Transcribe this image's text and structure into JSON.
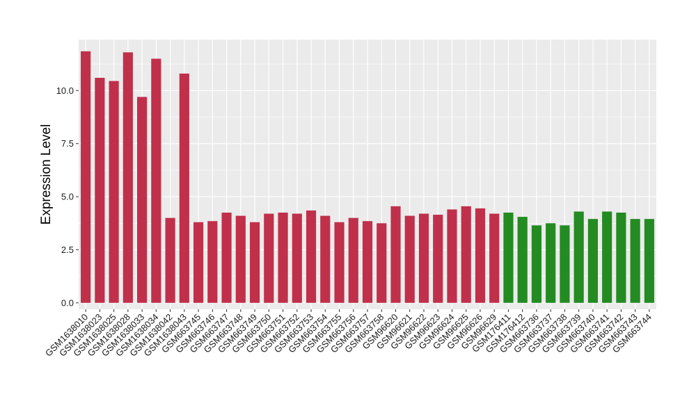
{
  "chart_data": {
    "type": "bar",
    "ylabel": "Expression Level",
    "xlabel": "",
    "ylim": [
      -0.3,
      12.4
    ],
    "yticks": [
      0.0,
      2.5,
      5.0,
      7.5,
      10.0
    ],
    "ytick_labels": [
      "0.0",
      "2.5",
      "5.0",
      "7.5",
      "10.0"
    ],
    "grid": true,
    "panel_background": "#EBEBEB",
    "grid_color": "#FFFFFF",
    "categories": [
      "GSM1638010",
      "GSM1638023",
      "GSM1638025",
      "GSM1638028",
      "GSM1638033",
      "GSM1638034",
      "GSM1638042",
      "GSM1638043",
      "GSM663745",
      "GSM663746",
      "GSM663747",
      "GSM663748",
      "GSM663749",
      "GSM663750",
      "GSM663751",
      "GSM663752",
      "GSM663753",
      "GSM663754",
      "GSM663755",
      "GSM663756",
      "GSM663757",
      "GSM663758",
      "GSM96620",
      "GSM96621",
      "GSM96622",
      "GSM96623",
      "GSM96624",
      "GSM96625",
      "GSM96626",
      "GSM96629",
      "GSM176411",
      "GSM176412",
      "GSM663736",
      "GSM663737",
      "GSM663738",
      "GSM663739",
      "GSM663740",
      "GSM663741",
      "GSM663742",
      "GSM663743",
      "GSM663744"
    ],
    "values": [
      11.85,
      10.6,
      10.45,
      11.8,
      9.7,
      11.5,
      4.0,
      10.8,
      3.8,
      3.85,
      4.25,
      4.1,
      3.8,
      4.2,
      4.25,
      4.2,
      4.35,
      4.1,
      3.8,
      4.0,
      3.85,
      3.75,
      4.55,
      4.1,
      4.2,
      4.15,
      4.4,
      4.55,
      4.45,
      4.2,
      4.25,
      4.05,
      3.65,
      3.75,
      3.65,
      4.3,
      3.95,
      4.3,
      4.25,
      3.95,
      3.95
    ],
    "groups": [
      {
        "count": 30,
        "color": "#C0304A"
      },
      {
        "count": 11,
        "color": "#238B22"
      }
    ]
  }
}
